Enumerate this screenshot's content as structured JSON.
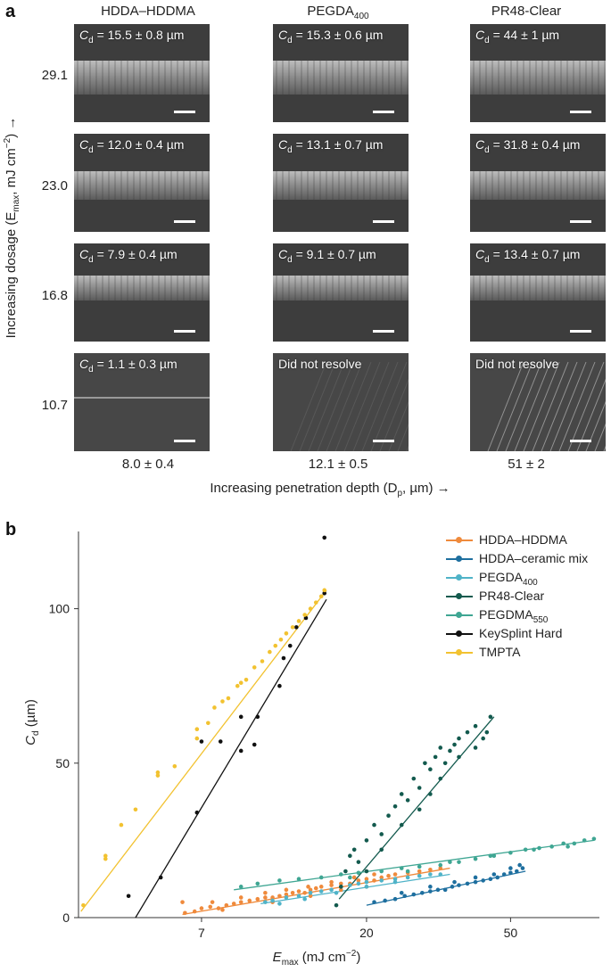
{
  "panel_a": {
    "letter": "a",
    "columns": [
      {
        "title_main": "HDDA–HDDMA",
        "title_sub": "",
        "bottom_value": "8.0 ± 0.4",
        "tiles": [
          "15.5 ± 0.8 µm",
          "12.0 ± 0.4 µm",
          "7.9 ± 0.4 µm",
          "1.1 ± 0.3 µm"
        ]
      },
      {
        "title_main": "PEGDA",
        "title_sub": "400",
        "bottom_value": "12.1 ± 0.5",
        "tiles": [
          "15.3 ± 0.6 µm",
          "13.1 ± 0.7 µm",
          "9.1 ± 0.7 µm",
          ""
        ]
      },
      {
        "title_main": "PR48-Clear",
        "title_sub": "",
        "bottom_value": "51 ± 2",
        "tiles": [
          "44 ± 1 µm",
          "31.8 ± 0.4 µm",
          "13.4 ± 0.7 µm",
          ""
        ]
      }
    ],
    "tile_prefix_main": "C",
    "tile_prefix_sub": "d",
    "tile_prefix_eq": " = ",
    "not_resolved_text": "Did not resolve",
    "row_values": [
      "29.1",
      "23.0",
      "16.8",
      "10.7"
    ],
    "y_axis_title": "Increasing dosage (E",
    "y_axis_title_sub": "max",
    "y_axis_title_end": ", mJ cm",
    "y_axis_title_sup": "−2",
    "y_axis_title_tail": ") →",
    "x_axis_title": "Increasing penetration depth (D",
    "x_axis_title_sub": "p",
    "x_axis_title_end": ", µm) →"
  },
  "panel_b": {
    "letter": "b",
    "chart_data": {
      "type": "scatter",
      "x_scale": "log",
      "xlim": [
        3.2,
        88
      ],
      "ylim": [
        0,
        125
      ],
      "x_ticks": [
        7,
        20,
        50
      ],
      "y_ticks": [
        0,
        50,
        100
      ],
      "xlabel_main": "E",
      "xlabel_sub": "max",
      "xlabel_end": " (mJ cm",
      "xlabel_sup": "−2",
      "xlabel_tail": ")",
      "ylabel_main": "C",
      "ylabel_sub": "d",
      "ylabel_end": " (µm)",
      "legend_position": "top-right",
      "series": [
        {
          "name": "HDDA–HDDMA",
          "name_sub": "",
          "color": "#ef8a3c",
          "fit": [
            [
              6.2,
              1.0
            ],
            [
              34,
              16
            ]
          ],
          "points": [
            [
              6.3,
              1.5
            ],
            [
              6.7,
              2
            ],
            [
              7.0,
              3
            ],
            [
              7.4,
              3.5
            ],
            [
              7.8,
              3
            ],
            [
              8.2,
              4
            ],
            [
              8.6,
              4.5
            ],
            [
              9.0,
              5
            ],
            [
              9.5,
              5.5
            ],
            [
              10,
              6
            ],
            [
              10.5,
              6.5
            ],
            [
              11,
              6.5
            ],
            [
              11.5,
              7
            ],
            [
              12,
              7.5
            ],
            [
              12.5,
              8
            ],
            [
              13,
              8.5
            ],
            [
              13.5,
              8
            ],
            [
              14,
              9
            ],
            [
              14.5,
              9.5
            ],
            [
              15,
              10
            ],
            [
              16,
              10.5
            ],
            [
              17,
              11
            ],
            [
              18,
              11
            ],
            [
              19,
              12
            ],
            [
              20,
              12.5
            ],
            [
              21,
              12
            ],
            [
              22,
              13
            ],
            [
              23,
              13.5
            ],
            [
              24,
              14
            ],
            [
              26,
              14.5
            ],
            [
              28,
              15
            ],
            [
              30,
              15.5
            ],
            [
              32,
              16
            ],
            [
              6.2,
              5
            ],
            [
              7.5,
              5
            ],
            [
              9,
              6.5
            ],
            [
              10.5,
              8
            ],
            [
              12,
              9
            ],
            [
              13.8,
              10
            ],
            [
              16,
              11.5
            ],
            [
              18.5,
              13
            ],
            [
              21,
              14
            ],
            [
              8,
              2.5
            ],
            [
              11,
              5
            ],
            [
              14,
              7
            ],
            [
              17,
              9
            ],
            [
              20,
              10
            ]
          ]
        },
        {
          "name": "HDDA–ceramic mix",
          "name_sub": "",
          "color": "#1e6f9f",
          "fit": [
            [
              20,
              4
            ],
            [
              55,
              15
            ]
          ],
          "points": [
            [
              21,
              5
            ],
            [
              22.5,
              5.5
            ],
            [
              24,
              6
            ],
            [
              25.5,
              7
            ],
            [
              27,
              7.5
            ],
            [
              28.5,
              8
            ],
            [
              30,
              8.5
            ],
            [
              31.5,
              9
            ],
            [
              33,
              9
            ],
            [
              34.5,
              10
            ],
            [
              36,
              10.5
            ],
            [
              38,
              11
            ],
            [
              40,
              11.5
            ],
            [
              42,
              12
            ],
            [
              44,
              12.5
            ],
            [
              46,
              13
            ],
            [
              48,
              14
            ],
            [
              50,
              14.5
            ],
            [
              52,
              15
            ],
            [
              54,
              16
            ],
            [
              25,
              8
            ],
            [
              30,
              10
            ],
            [
              35,
              11.5
            ],
            [
              40,
              13
            ],
            [
              45,
              14
            ],
            [
              50,
              16
            ],
            [
              53,
              17
            ]
          ]
        },
        {
          "name": "PEGDA",
          "name_sub": "400",
          "color": "#4fb3c8",
          "fit": [
            [
              10.2,
              4.5
            ],
            [
              34,
              14
            ]
          ],
          "points": [
            [
              10.5,
              5
            ],
            [
              11,
              5.5
            ],
            [
              12,
              6.5
            ],
            [
              13,
              7
            ],
            [
              14,
              8
            ],
            [
              15,
              8.5
            ],
            [
              16,
              9
            ],
            [
              17,
              10
            ],
            [
              18,
              10.5
            ],
            [
              19,
              11
            ],
            [
              20,
              11.5
            ],
            [
              22,
              12
            ],
            [
              24,
              12.5
            ],
            [
              26,
              13
            ],
            [
              28,
              13.5
            ],
            [
              30,
              14
            ],
            [
              32,
              14
            ],
            [
              11.5,
              4.5
            ],
            [
              13.5,
              6
            ],
            [
              16.5,
              8
            ],
            [
              20,
              10
            ],
            [
              24,
              11.5
            ]
          ]
        },
        {
          "name": "PR48-Clear",
          "name_sub": "",
          "color": "#135a4e",
          "fit": [
            [
              16.8,
              6
            ],
            [
              45,
              65
            ]
          ],
          "points": [
            [
              16.5,
              4
            ],
            [
              17,
              10
            ],
            [
              17.5,
              15
            ],
            [
              18,
              20
            ],
            [
              18.5,
              22
            ],
            [
              19,
              18
            ],
            [
              20,
              25
            ],
            [
              21,
              30
            ],
            [
              22,
              27
            ],
            [
              23,
              33
            ],
            [
              24,
              36
            ],
            [
              25,
              40
            ],
            [
              26,
              38
            ],
            [
              27,
              45
            ],
            [
              28,
              42
            ],
            [
              29,
              50
            ],
            [
              30,
              48
            ],
            [
              31,
              52
            ],
            [
              32,
              55
            ],
            [
              33,
              50
            ],
            [
              34,
              54
            ],
            [
              35,
              56
            ],
            [
              36,
              58
            ],
            [
              38,
              60
            ],
            [
              40,
              62
            ],
            [
              42,
              58
            ],
            [
              44,
              65
            ],
            [
              43,
              60
            ],
            [
              25,
              30
            ],
            [
              22,
              22
            ],
            [
              28,
              35
            ],
            [
              32,
              45
            ],
            [
              36,
              52
            ],
            [
              40,
              55
            ],
            [
              20,
              15
            ],
            [
              30,
              40
            ]
          ]
        },
        {
          "name": "PEGDMA",
          "name_sub": "550",
          "color": "#3fa693",
          "fit": [
            [
              8.6,
              9
            ],
            [
              85,
              25
            ]
          ],
          "points": [
            [
              9,
              10
            ],
            [
              10,
              11
            ],
            [
              11.5,
              12
            ],
            [
              13,
              12.5
            ],
            [
              15,
              13
            ],
            [
              17,
              14
            ],
            [
              19,
              14.5
            ],
            [
              22,
              15
            ],
            [
              25,
              16
            ],
            [
              28,
              16.5
            ],
            [
              32,
              17
            ],
            [
              36,
              18
            ],
            [
              40,
              19
            ],
            [
              45,
              20
            ],
            [
              50,
              21
            ],
            [
              55,
              22
            ],
            [
              60,
              22.5
            ],
            [
              65,
              23
            ],
            [
              70,
              24
            ],
            [
              75,
              24
            ],
            [
              80,
              25
            ],
            [
              85,
              25.5
            ],
            [
              18,
              13
            ],
            [
              26,
              15
            ],
            [
              34,
              18
            ],
            [
              44,
              20
            ],
            [
              58,
              22
            ],
            [
              72,
              23
            ]
          ]
        },
        {
          "name": "KeySplint Hard",
          "name_sub": "",
          "color": "#111111",
          "fit": [
            [
              4.6,
              0
            ],
            [
              15.5,
              103
            ]
          ],
          "points": [
            [
              4.4,
              7
            ],
            [
              5.4,
              13
            ],
            [
              6.8,
              34
            ],
            [
              7.0,
              57
            ],
            [
              7.9,
              57
            ],
            [
              9.0,
              65
            ],
            [
              9.8,
              56
            ],
            [
              10.0,
              65
            ],
            [
              11.5,
              75
            ],
            [
              11.8,
              84
            ],
            [
              12.3,
              88
            ],
            [
              12.8,
              94
            ],
            [
              13.6,
              97
            ],
            [
              15.3,
              105
            ],
            [
              15.3,
              123
            ],
            [
              9.0,
              54
            ]
          ]
        },
        {
          "name": "TMPTA",
          "name_sub": "",
          "color": "#f2c230",
          "fit": [
            [
              3.25,
              2
            ],
            [
              15.5,
              106
            ]
          ],
          "points": [
            [
              3.3,
              4
            ],
            [
              3.8,
              19
            ],
            [
              3.8,
              20
            ],
            [
              4.2,
              30
            ],
            [
              4.6,
              35
            ],
            [
              5.3,
              46
            ],
            [
              5.3,
              47
            ],
            [
              5.9,
              49
            ],
            [
              6.8,
              58
            ],
            [
              6.8,
              61
            ],
            [
              7.3,
              63
            ],
            [
              7.6,
              68
            ],
            [
              8.0,
              70
            ],
            [
              8.3,
              71
            ],
            [
              8.8,
              75
            ],
            [
              9.3,
              77
            ],
            [
              9.8,
              81
            ],
            [
              10.3,
              83
            ],
            [
              10.8,
              86
            ],
            [
              11.2,
              88
            ],
            [
              11.6,
              90
            ],
            [
              12.0,
              92
            ],
            [
              12.5,
              94
            ],
            [
              13.0,
              96
            ],
            [
              13.5,
              98
            ],
            [
              14.0,
              100
            ],
            [
              14.5,
              102
            ],
            [
              15.0,
              104
            ],
            [
              15.3,
              106
            ],
            [
              9.0,
              76
            ]
          ]
        }
      ]
    }
  }
}
